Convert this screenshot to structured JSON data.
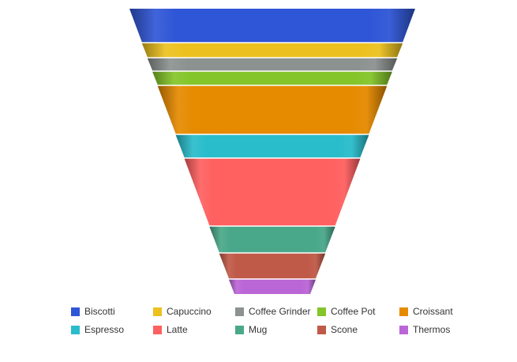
{
  "chart_data": {
    "type": "funnel",
    "categories": [
      "Biscotti",
      "Capuccino",
      "Coffee Grinder",
      "Coffee Pot",
      "Croissant",
      "Espresso",
      "Latte",
      "Mug",
      "Scone",
      "Thermos"
    ],
    "values": [
      43,
      19,
      17,
      18,
      62,
      30,
      86,
      34,
      33,
      19
    ],
    "colors": [
      "#2f56d6",
      "#ecc11f",
      "#8c9290",
      "#84c52a",
      "#e68a00",
      "#29bccb",
      "#ff6060",
      "#4aa88a",
      "#c05a48",
      "#bb66d6"
    ],
    "legend_position": "bottom"
  }
}
